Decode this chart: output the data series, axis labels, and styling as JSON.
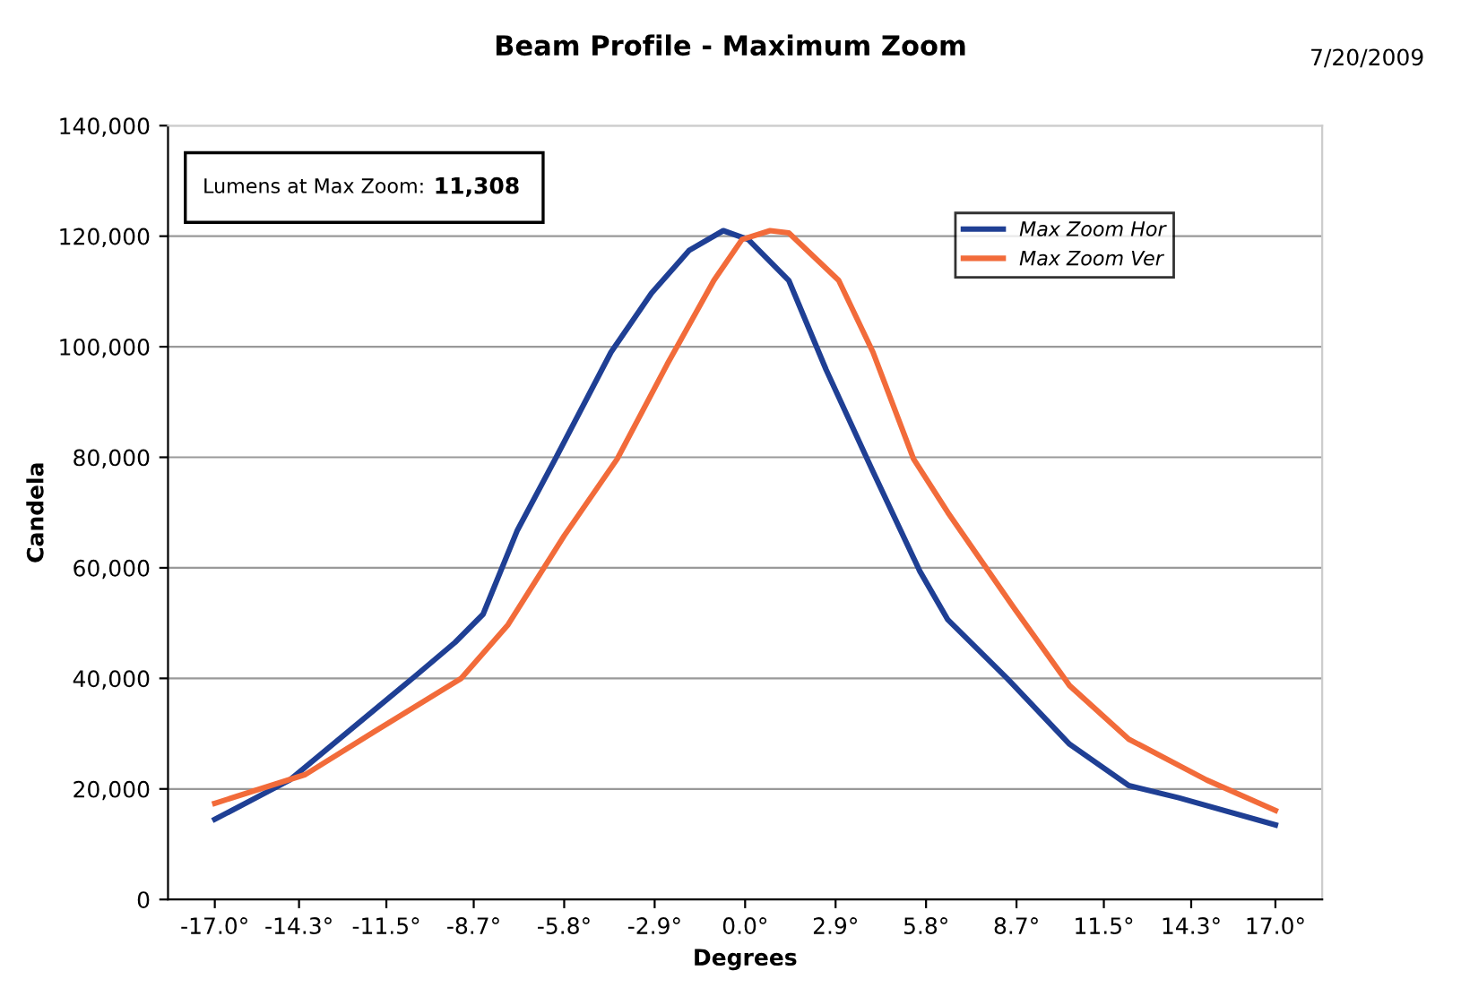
{
  "chart_data": {
    "type": "line",
    "title": "Beam Profile - Maximum Zoom",
    "xlabel": "Degrees",
    "ylabel": "Candela",
    "annotations": [
      "7/20/2009",
      "Lumens at Max Zoom:",
      "11,308"
    ],
    "xlim": [
      -18.5,
      18.5
    ],
    "xticks": [
      {
        "value": -17,
        "label": "-17.0°"
      },
      {
        "value": -14.3,
        "label": "-14.3°"
      },
      {
        "value": -11.5,
        "label": "-11.5°"
      },
      {
        "value": -8.7,
        "label": "-8.7°"
      },
      {
        "value": -5.8,
        "label": "-5.8°"
      },
      {
        "value": -2.9,
        "label": "-2.9°"
      },
      {
        "value": 0,
        "label": "0.0°"
      },
      {
        "value": 2.9,
        "label": "2.9°"
      },
      {
        "value": 5.8,
        "label": "5.8°"
      },
      {
        "value": 8.7,
        "label": "8.7°"
      },
      {
        "value": 11.5,
        "label": "11.5°"
      },
      {
        "value": 14.3,
        "label": "14.3°"
      },
      {
        "value": 17,
        "label": "17.0°"
      }
    ],
    "ylim": [
      0,
      140000
    ],
    "yticks": [
      {
        "value": 0,
        "label": "0"
      },
      {
        "value": 20000,
        "label": "20,000"
      },
      {
        "value": 40000,
        "label": "40,000"
      },
      {
        "value": 60000,
        "label": "60,000"
      },
      {
        "value": 80000,
        "label": "80,000"
      },
      {
        "value": 100000,
        "label": "100,000"
      },
      {
        "value": 120000,
        "label": "120,000"
      },
      {
        "value": 140000,
        "label": "140,000"
      }
    ],
    "grid": "y",
    "legend": "top right",
    "marker": "none",
    "line_style": "solid",
    "series": [
      {
        "name": "Max Zoom Hor",
        "color": "#1f3f94",
        "x": [
          -17.0,
          -14.6,
          -10.6,
          -9.3,
          -8.4,
          -7.3,
          -6.0,
          -4.3,
          -3.0,
          -1.8,
          -0.7,
          0.1,
          1.4,
          2.6,
          4.1,
          5.6,
          6.5,
          8.4,
          10.4,
          12.3,
          13.9,
          17.0
        ],
        "values": [
          14500,
          21600,
          40300,
          46500,
          51600,
          66800,
          80600,
          99000,
          109700,
          117400,
          121000,
          119400,
          112000,
          95800,
          77400,
          59400,
          50600,
          40000,
          28100,
          20600,
          18400,
          13500
        ]
      },
      {
        "name": "Max Zoom Ver",
        "color": "#f26b3a",
        "x": [
          -17.0,
          -14.1,
          -11.9,
          -9.1,
          -7.6,
          -5.8,
          -4.1,
          -2.5,
          -1.0,
          -0.1,
          0.8,
          1.4,
          3.0,
          4.1,
          5.4,
          6.5,
          8.6,
          10.4,
          12.3,
          14.8,
          17.0
        ],
        "values": [
          17400,
          22600,
          30300,
          40000,
          49700,
          65800,
          79700,
          96800,
          112000,
          119400,
          121000,
          120600,
          112000,
          99000,
          79700,
          70000,
          52900,
          38700,
          29000,
          21600,
          16100
        ]
      }
    ]
  }
}
